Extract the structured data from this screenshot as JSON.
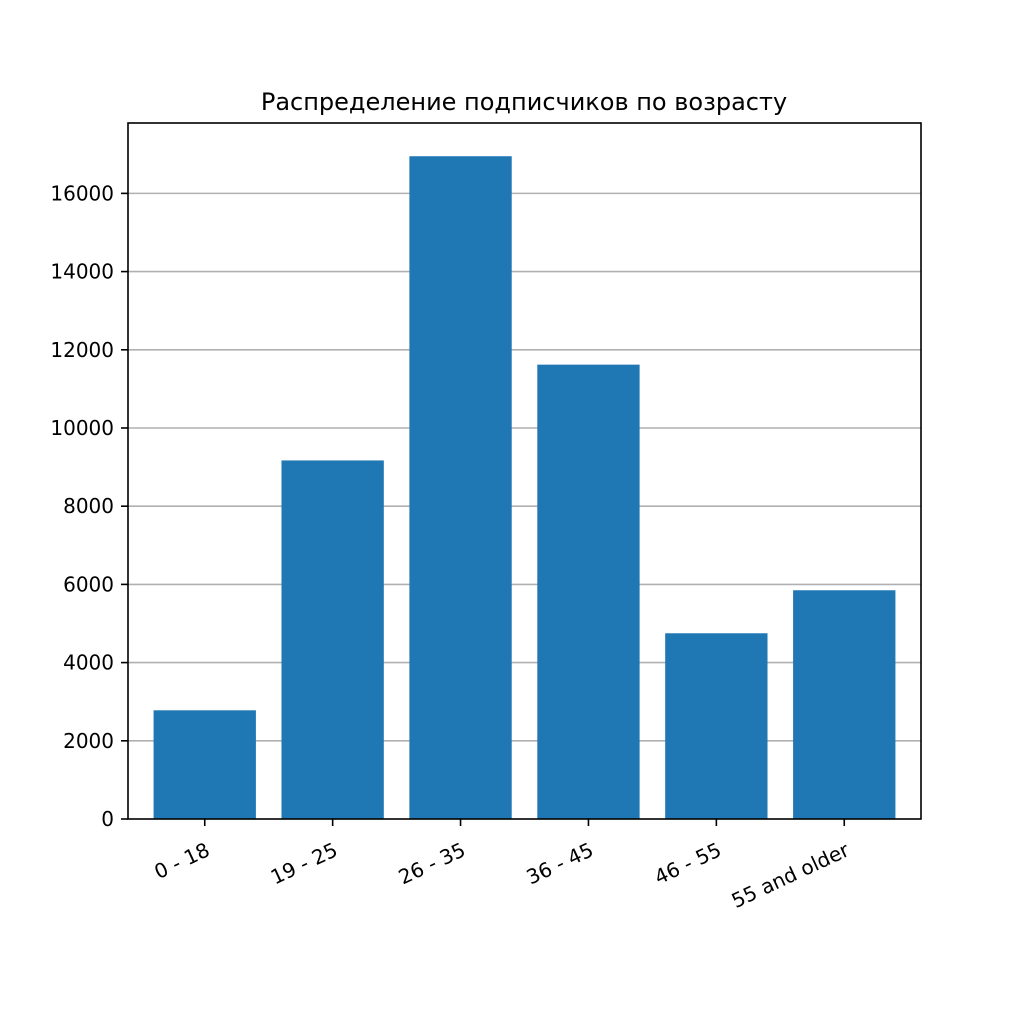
{
  "chart_data": {
    "type": "bar",
    "title": "Распределение подписчиков по возрасту",
    "xlabel": "",
    "ylabel": "",
    "categories": [
      "0 - 18",
      "19 - 25",
      "26 - 35",
      "36 - 45",
      "46 - 55",
      "55 and older"
    ],
    "values": [
      2780,
      9170,
      16950,
      11620,
      4750,
      5850
    ],
    "ylim": [
      0,
      17800
    ],
    "yticks": [
      0,
      2000,
      4000,
      6000,
      8000,
      10000,
      12000,
      14000,
      16000
    ],
    "grid": "horizontal",
    "bar_color": "#1f77b4",
    "grid_color": "#b0b0b0",
    "x_tick_rotation": "slanted"
  }
}
